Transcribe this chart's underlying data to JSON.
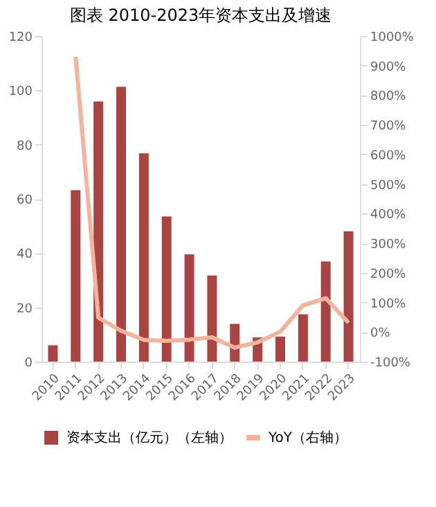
{
  "chart_data": {
    "type": "bar",
    "title": "图表 2010-2023年资本支出及增速",
    "categories": [
      "2010",
      "2011",
      "2012",
      "2013",
      "2014",
      "2015",
      "2016",
      "2017",
      "2018",
      "2019",
      "2020",
      "2021",
      "2022",
      "2023"
    ],
    "series": [
      {
        "name": "资本支出（亿元）（左轴）",
        "color": "#a94442",
        "values": [
          6,
          63.2,
          95.9,
          101.3,
          76.8,
          53.5,
          39.5,
          31.7,
          13.9,
          8.9,
          9.2,
          17.4,
          36.9,
          48
        ]
      },
      {
        "name": "YoY（右轴）",
        "type": "line",
        "axis": "y2",
        "color": "#f4b49c",
        "values": [
          null,
          930,
          48,
          4,
          -27,
          -30,
          -26,
          -18,
          -53,
          -35,
          1,
          90,
          114,
          31
        ]
      }
    ],
    "ylim": [
      0,
      120
    ],
    "yticks": [
      0,
      20,
      40,
      60,
      80,
      100,
      120
    ],
    "y2lim": [
      -100,
      1000
    ],
    "y2ticks": [
      {
        "value": -100,
        "label": "-100%"
      },
      {
        "value": 0,
        "label": "0%"
      },
      {
        "value": 100,
        "label": "100%"
      },
      {
        "value": 200,
        "label": "200%"
      },
      {
        "value": 300,
        "label": "300%"
      },
      {
        "value": 400,
        "label": "400%"
      },
      {
        "value": 500,
        "label": "500%"
      },
      {
        "value": 600,
        "label": "600%"
      },
      {
        "value": 700,
        "label": "700%"
      },
      {
        "value": 800,
        "label": "800%"
      },
      {
        "value": 900,
        "label": "900%"
      },
      {
        "value": 1000,
        "label": "1000%"
      }
    ],
    "grid": false,
    "legend": "bottom",
    "marker": "none",
    "line_style": "solid"
  }
}
